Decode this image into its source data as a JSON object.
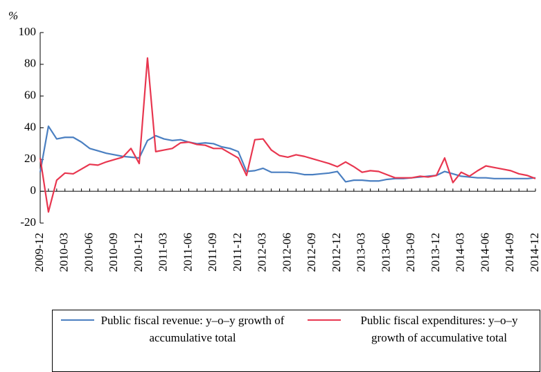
{
  "chart_data": {
    "type": "line",
    "y_label": "%",
    "categories": [
      "2009-12",
      null,
      null,
      "2010-03",
      null,
      null,
      "2010-06",
      null,
      null,
      "2010-09",
      null,
      null,
      "2010-12",
      null,
      null,
      "2011-03",
      null,
      null,
      "2011-06",
      null,
      null,
      "2011-09",
      null,
      null,
      "2011-12",
      null,
      null,
      "2012-03",
      null,
      null,
      "2012-06",
      null,
      null,
      "2012-09",
      null,
      null,
      "2012-12",
      null,
      null,
      "2013-03",
      null,
      null,
      "2013-06",
      null,
      null,
      "2013-09",
      null,
      null,
      "2013-12",
      null,
      null,
      "2014-03",
      null,
      null,
      "2014-06",
      null,
      null,
      "2014-09",
      null,
      null,
      "2014-12"
    ],
    "series": [
      {
        "name": "Public fiscal revenue: y–o–y growth of accumulative total",
        "color": "#4a7fc1",
        "values": [
          12,
          41,
          33,
          34,
          34,
          31,
          27,
          25.5,
          24,
          23,
          22,
          21.5,
          21,
          32,
          35,
          33,
          32,
          32.5,
          31,
          30,
          30.5,
          30,
          28,
          27,
          25,
          12.5,
          13,
          14.5,
          12,
          12,
          12,
          11.5,
          10.5,
          10.5,
          11,
          11.5,
          12.5,
          6,
          7,
          7,
          6.5,
          6.5,
          7.5,
          8,
          8,
          8.5,
          9,
          9.5,
          10,
          12.5,
          11,
          9.5,
          9,
          8.5,
          8.5,
          8,
          8,
          8,
          8,
          8,
          8.5
        ]
      },
      {
        "name": "Public fiscal expenditures: y–o–y growth of accumulative total",
        "color": "#e8364f",
        "values": [
          21,
          -13,
          7,
          11.5,
          11,
          14,
          17,
          16.5,
          18.5,
          20,
          21.5,
          27,
          17.5,
          84,
          25,
          26,
          27,
          30.5,
          31,
          29.5,
          29,
          27,
          27,
          24,
          21,
          10,
          32.5,
          33,
          26,
          22.5,
          21.5,
          23,
          22,
          20.5,
          19,
          17.5,
          15.5,
          18.5,
          15.5,
          12,
          13,
          12.5,
          10.5,
          8.5,
          8.5,
          8.5,
          9.5,
          9,
          10,
          21,
          5.5,
          12,
          9.5,
          13,
          16,
          15,
          14,
          13,
          11,
          10,
          8
        ]
      }
    ],
    "ylim": [
      -20,
      100
    ],
    "yticks": [
      -20,
      0,
      20,
      40,
      60,
      80,
      100
    ]
  }
}
